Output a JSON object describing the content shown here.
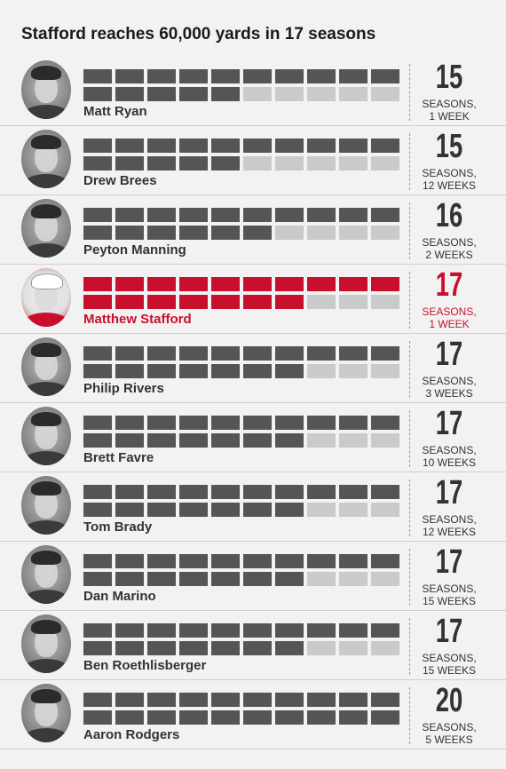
{
  "title": "Stafford reaches 60,000 yards in 17 seasons",
  "colors": {
    "background": "#f2f2f2",
    "filled": "#555555",
    "empty": "#cacaca",
    "highlight": "#c8102e"
  },
  "chart_data": {
    "type": "table",
    "title": "Stafford reaches 60,000 yards in 17 seasons",
    "grid_columns": 10,
    "grid_rows": 2,
    "rows": [
      {
        "name": "Matt Ryan",
        "seasons": "15",
        "unit_line1": "SEASONS,",
        "unit_line2": "1 WEEK",
        "filled": 15,
        "highlight": false
      },
      {
        "name": "Drew Brees",
        "seasons": "15",
        "unit_line1": "SEASONS,",
        "unit_line2": "12 WEEKS",
        "filled": 15,
        "highlight": false
      },
      {
        "name": "Peyton Manning",
        "seasons": "16",
        "unit_line1": "SEASONS,",
        "unit_line2": "2 WEEKS",
        "filled": 16,
        "highlight": false
      },
      {
        "name": "Matthew Stafford",
        "seasons": "17",
        "unit_line1": "SEASONS,",
        "unit_line2": "1 WEEK",
        "filled": 17,
        "highlight": true
      },
      {
        "name": "Philip Rivers",
        "seasons": "17",
        "unit_line1": "SEASONS,",
        "unit_line2": "3 WEEKS",
        "filled": 17,
        "highlight": false
      },
      {
        "name": "Brett Favre",
        "seasons": "17",
        "unit_line1": "SEASONS,",
        "unit_line2": "10 WEEKS",
        "filled": 17,
        "highlight": false
      },
      {
        "name": "Tom Brady",
        "seasons": "17",
        "unit_line1": "SEASONS,",
        "unit_line2": "12 WEEKS",
        "filled": 17,
        "highlight": false
      },
      {
        "name": "Dan Marino",
        "seasons": "17",
        "unit_line1": "SEASONS,",
        "unit_line2": "15 WEEKS",
        "filled": 17,
        "highlight": false
      },
      {
        "name": "Ben Roethlisberger",
        "seasons": "17",
        "unit_line1": "SEASONS,",
        "unit_line2": "15 WEEKS",
        "filled": 17,
        "highlight": false
      },
      {
        "name": "Aaron Rodgers",
        "seasons": "20",
        "unit_line1": "SEASONS,",
        "unit_line2": "5 WEEKS",
        "filled": 20,
        "highlight": false
      }
    ]
  }
}
